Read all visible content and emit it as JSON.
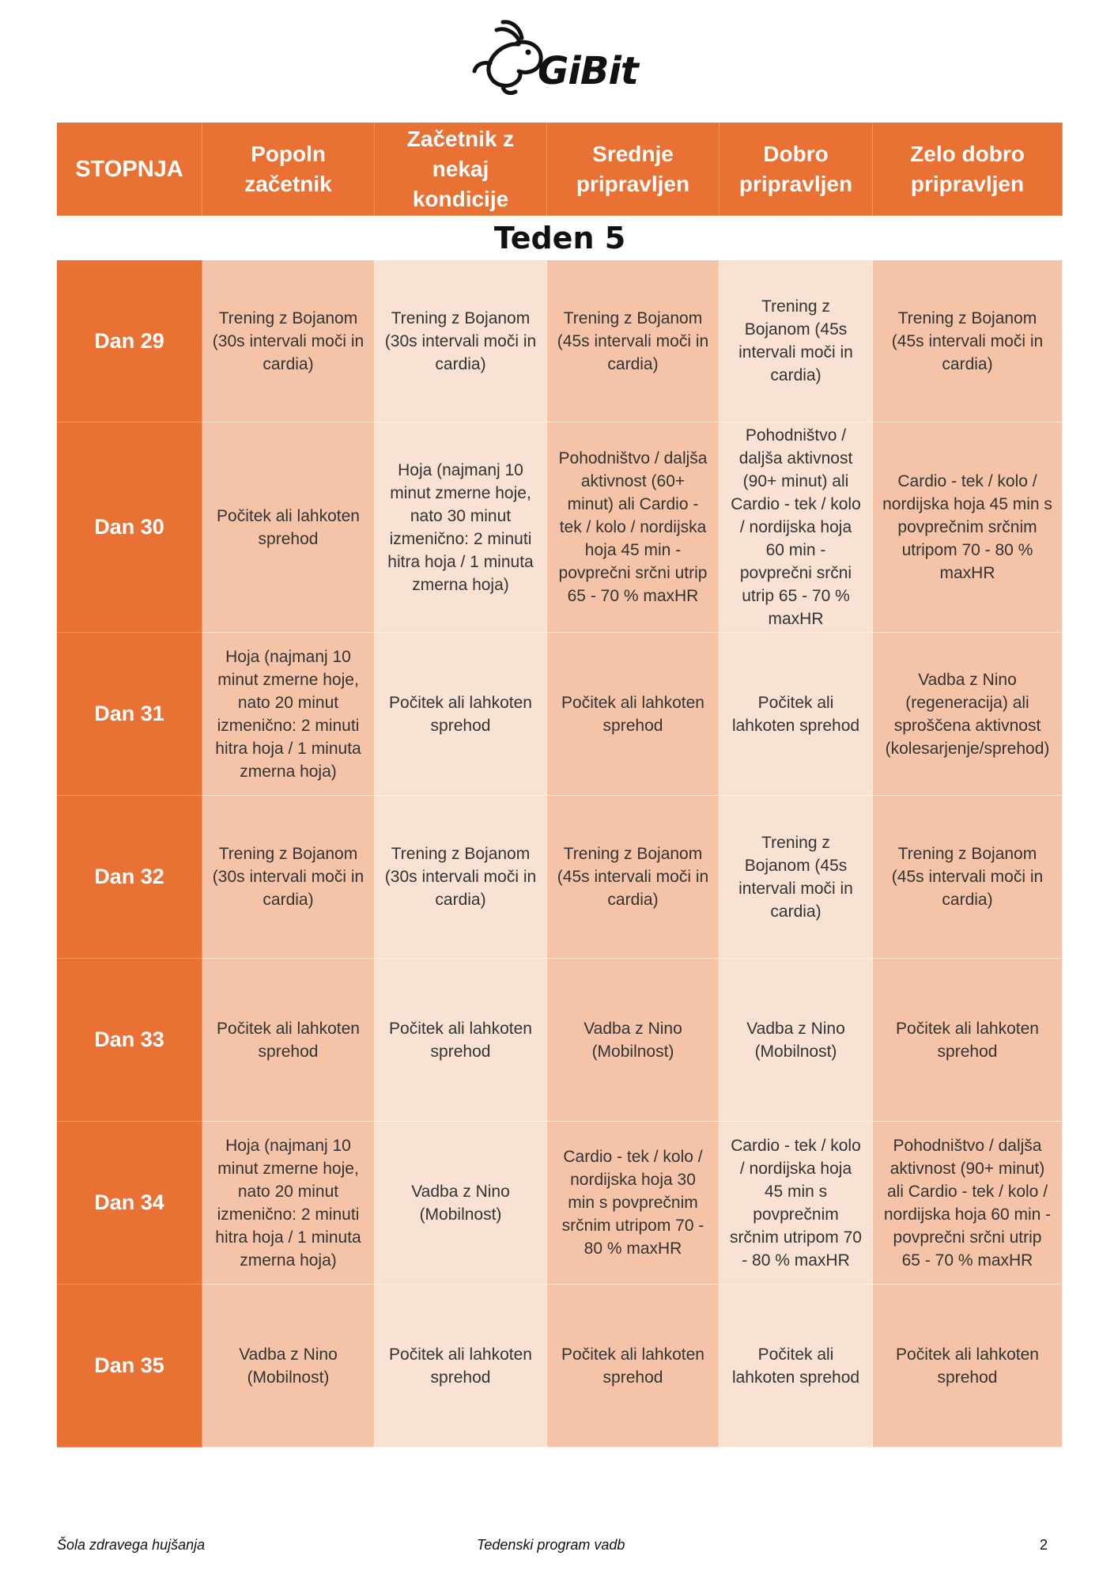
{
  "logo": {
    "text": "GiBit",
    "icon": "rabbit-logo-icon"
  },
  "header": {
    "first": "STOPNJA",
    "levels": [
      "Popoln začetnik",
      "Začetnik z nekaj kondicije",
      "Srednje pripravljen",
      "Dobro pripravljen",
      "Zelo  dobro pripravljen"
    ]
  },
  "week_title": "Teden 5",
  "days": [
    {
      "label": "Dan 29",
      "cells": [
        "Trening z Bojanom (30s intervali moči in cardia)",
        "Trening z Bojanom (30s intervali moči in cardia)",
        "Trening z Bojanom (45s intervali moči in cardia)",
        "Trening z Bojanom (45s intervali moči in cardia)",
        "Trening z Bojanom (45s intervali moči in cardia)"
      ]
    },
    {
      "label": "Dan 30",
      "cells": [
        "Počitek ali lahkoten sprehod",
        "Hoja (najmanj 10 minut zmerne hoje, nato 30 minut izmenično: 2 minuti hitra hoja / 1 minuta zmerna hoja)",
        "Pohodništvo / daljša aktivnost (60+ minut) ali Cardio - tek / kolo / nordijska hoja 45 min - povprečni srčni utrip 65 - 70 % maxHR",
        "Pohodništvo / daljša aktivnost (90+ minut) ali Cardio - tek / kolo / nordijska hoja 60 min - povprečni srčni utrip 65 - 70 % maxHR",
        "Cardio - tek / kolo / nordijska hoja 45 min s povprečnim srčnim utripom 70 - 80 % maxHR"
      ]
    },
    {
      "label": "Dan 31",
      "cells": [
        "Hoja (najmanj 10 minut zmerne hoje, nato 20 minut izmenično: 2 minuti hitra hoja / 1 minuta zmerna hoja)",
        "Počitek ali lahkoten sprehod",
        "Počitek ali lahkoten sprehod",
        "Počitek ali lahkoten sprehod",
        "Vadba z Nino (regeneracija) ali sproščena aktivnost (kolesarjenje/sprehod)"
      ]
    },
    {
      "label": "Dan 32",
      "cells": [
        "Trening z Bojanom (30s intervali moči in cardia)",
        "Trening z Bojanom (30s intervali moči in cardia)",
        "Trening z Bojanom (45s intervali moči in cardia)",
        "Trening z Bojanom (45s intervali moči in cardia)",
        "Trening z Bojanom (45s intervali moči in cardia)"
      ]
    },
    {
      "label": "Dan 33",
      "cells": [
        "Počitek ali lahkoten sprehod",
        "Počitek ali lahkoten sprehod",
        "Vadba z Nino (Mobilnost)",
        "Vadba z Nino (Mobilnost)",
        "Počitek ali lahkoten sprehod"
      ]
    },
    {
      "label": "Dan 34",
      "cells": [
        "Hoja (najmanj 10 minut zmerne hoje, nato 20 minut izmenično: 2 minuti hitra hoja / 1 minuta zmerna hoja)",
        "Vadba z Nino (Mobilnost)",
        "Cardio - tek / kolo / nordijska hoja 30 min s povprečnim srčnim utripom 70 - 80 % maxHR",
        "Cardio - tek / kolo / nordijska hoja 45 min s povprečnim srčnim utripom 70 - 80 % maxHR",
        "Pohodništvo / daljša aktivnost (90+ minut) ali Cardio - tek / kolo / nordijska hoja 60 min - povprečni srčni utrip 65 - 70 % maxHR"
      ]
    },
    {
      "label": "Dan 35",
      "cells": [
        "Vadba z Nino (Mobilnost)",
        "Počitek ali lahkoten sprehod",
        "Počitek ali lahkoten sprehod",
        "Počitek ali lahkoten sprehod",
        "Počitek ali lahkoten sprehod"
      ]
    }
  ],
  "colors": {
    "header": "#e87133",
    "cell_dark": "#f5c3a7",
    "cell_light": "#f9e1d3"
  },
  "footer": {
    "left": "Šola zdravega hujšanja",
    "center": "Tedenski program vadb",
    "page": "2"
  }
}
